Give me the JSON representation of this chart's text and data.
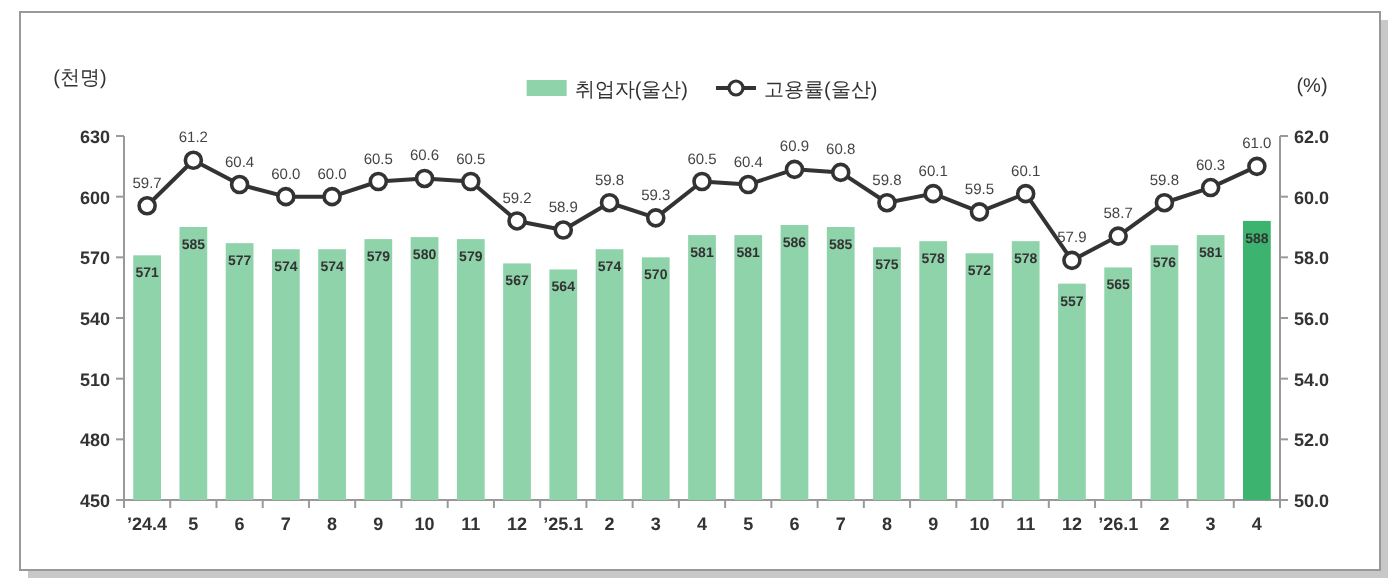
{
  "chart_data": {
    "type": "bar",
    "categories": [
      "’24.4",
      "5",
      "6",
      "7",
      "8",
      "9",
      "10",
      "11",
      "12",
      "’25.1",
      "2",
      "3",
      "4",
      "5",
      "6",
      "7",
      "8",
      "9",
      "10",
      "11",
      "12",
      "’26.1",
      "2",
      "3",
      "4"
    ],
    "ylabel": "(천명)",
    "y2label": "(%)",
    "ylim": [
      450,
      630
    ],
    "yticks": [
      450,
      480,
      510,
      540,
      570,
      600,
      630
    ],
    "y2lim": [
      50,
      62
    ],
    "y2ticks": [
      {
        "value": 50,
        "label": "50.0"
      },
      {
        "value": 52,
        "label": "52.0"
      },
      {
        "value": 54,
        "label": "54.0"
      },
      {
        "value": 56,
        "label": "56.0"
      },
      {
        "value": 58,
        "label": "58.0"
      },
      {
        "value": 60,
        "label": "60.0"
      },
      {
        "value": 62,
        "label": "62.0"
      }
    ],
    "legend": "top",
    "marker": "circle",
    "series": [
      {
        "name": "취업자(울산)",
        "colors": [
          "#8fd3ab",
          "#8fd3ab",
          "#8fd3ab",
          "#8fd3ab",
          "#8fd3ab",
          "#8fd3ab",
          "#8fd3ab",
          "#8fd3ab",
          "#8fd3ab",
          "#8fd3ab",
          "#8fd3ab",
          "#8fd3ab",
          "#8fd3ab",
          "#8fd3ab",
          "#8fd3ab",
          "#8fd3ab",
          "#8fd3ab",
          "#8fd3ab",
          "#8fd3ab",
          "#8fd3ab",
          "#8fd3ab",
          "#8fd3ab",
          "#8fd3ab",
          "#8fd3ab",
          "#3cb36e"
        ],
        "values": [
          571,
          585,
          577,
          574,
          574,
          579,
          580,
          579,
          567,
          564,
          574,
          570,
          581,
          581,
          586,
          585,
          575,
          578,
          572,
          578,
          557,
          565,
          576,
          581,
          588
        ],
        "value_labels": [
          "571",
          "585",
          "577",
          "574",
          "574",
          "579",
          "580",
          "579",
          "567",
          "564",
          "574",
          "570",
          "581",
          "581",
          "586",
          "585",
          "575",
          "578",
          "572",
          "578",
          "557",
          "565",
          "576",
          "581",
          "588"
        ]
      },
      {
        "name": "고용률(울산)",
        "type": "line",
        "axis": "y2",
        "color": "#333333",
        "values": [
          59.7,
          61.2,
          60.4,
          60.0,
          60.0,
          60.5,
          60.6,
          60.5,
          59.2,
          58.9,
          59.8,
          59.3,
          60.5,
          60.4,
          60.9,
          60.8,
          59.8,
          60.1,
          59.5,
          60.1,
          57.9,
          58.7,
          59.8,
          60.3,
          61.0
        ],
        "value_labels": [
          "59.7",
          "61.2",
          "60.4",
          "60.0",
          "60.0",
          "60.5",
          "60.6",
          "60.5",
          "59.2",
          "58.9",
          "59.8",
          "59.3",
          "60.5",
          "60.4",
          "60.9",
          "60.8",
          "59.8",
          "60.1",
          "59.5",
          "60.1",
          "57.9",
          "58.7",
          "59.8",
          "60.3",
          "61.0"
        ]
      }
    ]
  }
}
